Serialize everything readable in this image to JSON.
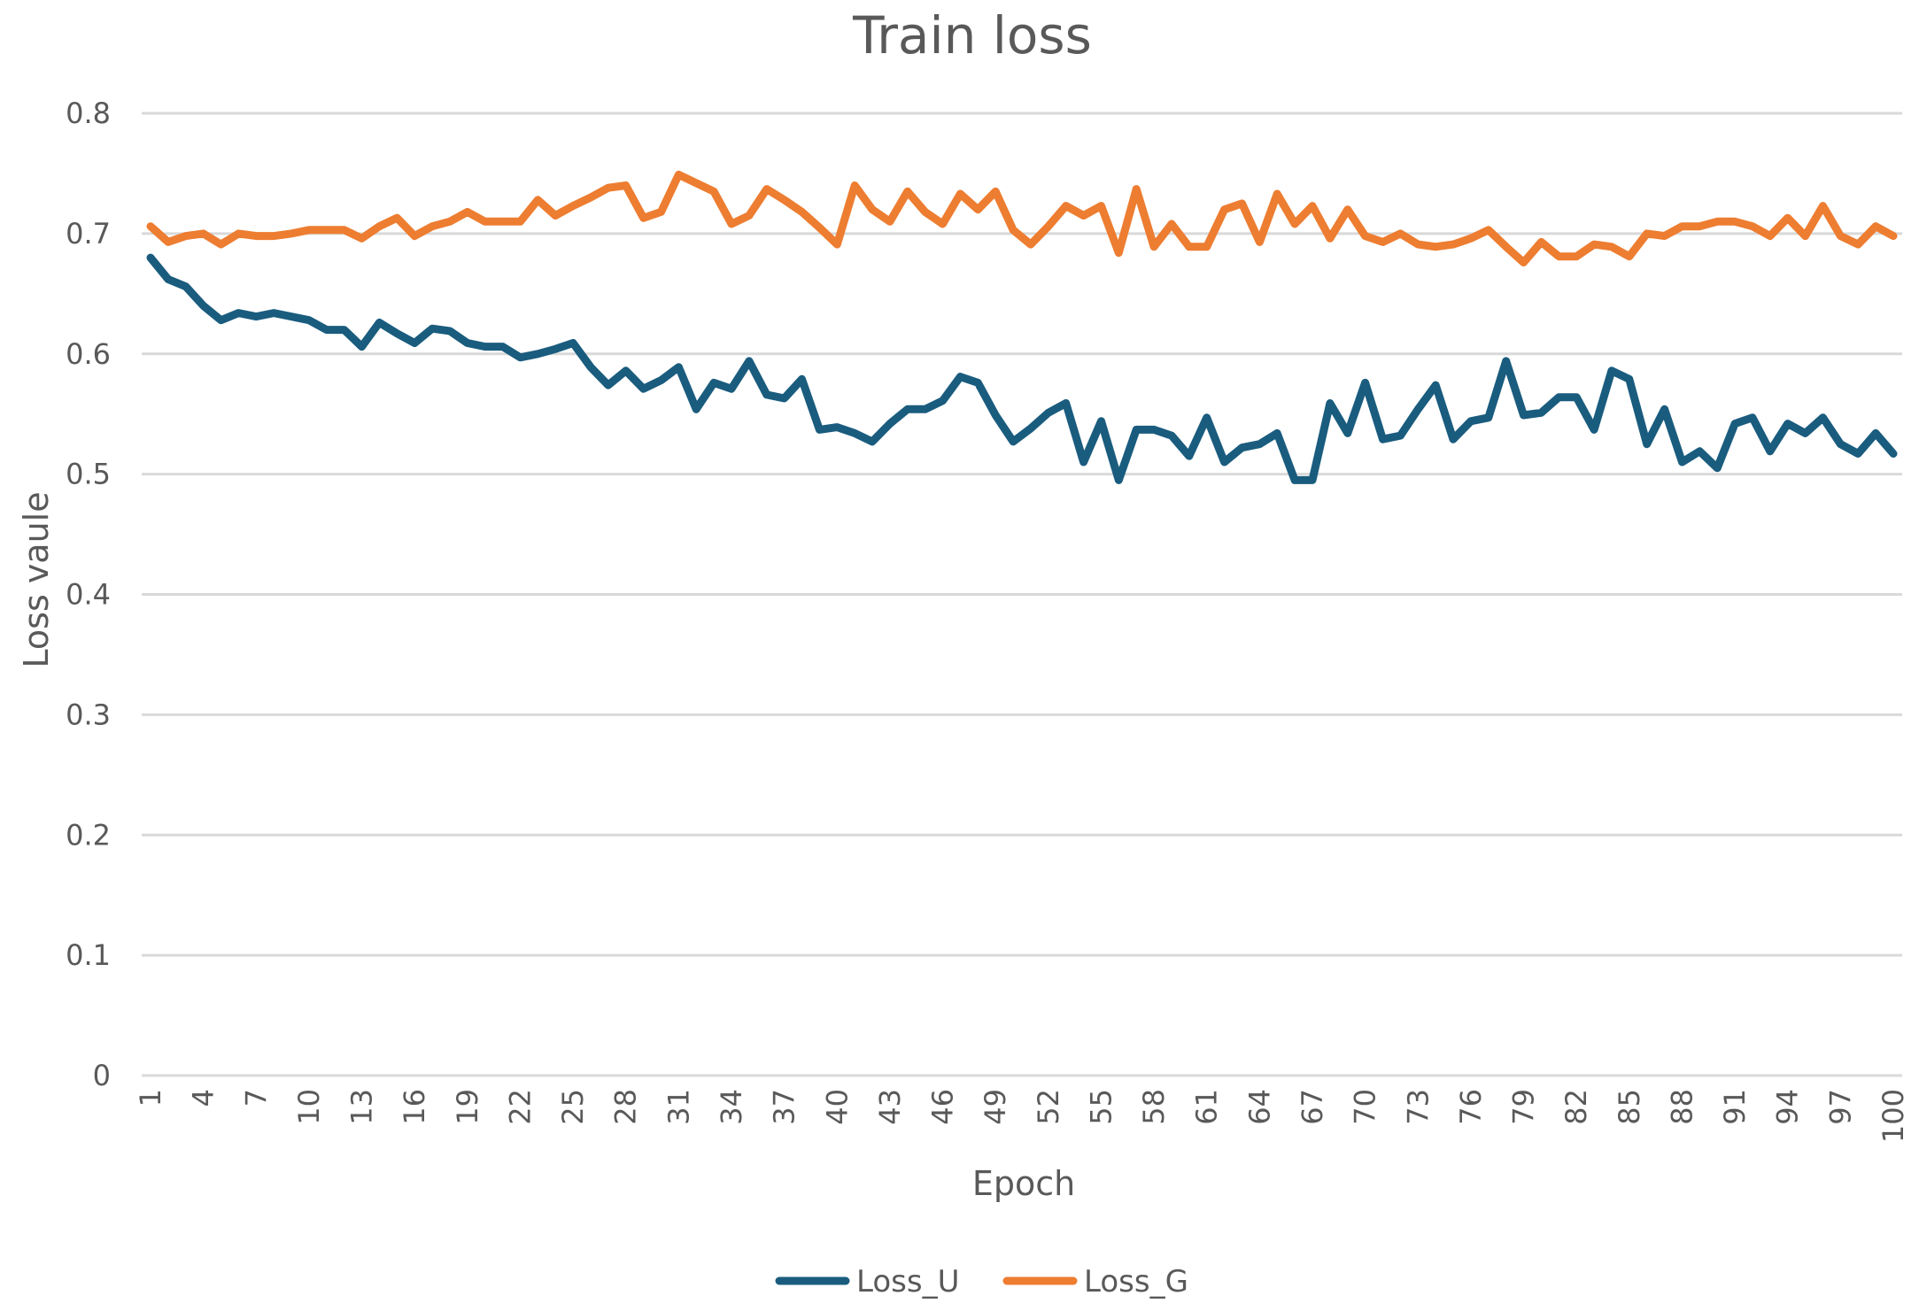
{
  "chart_data": {
    "type": "line",
    "title": "Train loss",
    "xlabel": "Epoch",
    "ylabel": "Loss vaule",
    "ylim": [
      0,
      0.8
    ],
    "yticks": [
      "0",
      "0.1",
      "0.2",
      "0.3",
      "0.4",
      "0.5",
      "0.6",
      "0.7",
      "0.8"
    ],
    "grid": true,
    "legend_position": "bottom",
    "x": [
      1,
      2,
      3,
      4,
      5,
      6,
      7,
      8,
      9,
      10,
      11,
      12,
      13,
      14,
      15,
      16,
      17,
      18,
      19,
      20,
      21,
      22,
      23,
      24,
      25,
      26,
      27,
      28,
      29,
      30,
      31,
      32,
      33,
      34,
      35,
      36,
      37,
      38,
      39,
      40,
      41,
      42,
      43,
      44,
      45,
      46,
      47,
      48,
      49,
      50,
      51,
      52,
      53,
      54,
      55,
      56,
      57,
      58,
      59,
      60,
      61,
      62,
      63,
      64,
      65,
      66,
      67,
      68,
      69,
      70,
      71,
      72,
      73,
      74,
      75,
      76,
      77,
      78,
      79,
      80,
      81,
      82,
      83,
      84,
      85,
      86,
      87,
      88,
      89,
      90,
      91,
      92,
      93,
      94,
      95,
      96,
      97,
      98,
      99,
      100
    ],
    "xtick_labels": [
      "1",
      "4",
      "7",
      "10",
      "13",
      "16",
      "19",
      "22",
      "25",
      "28",
      "31",
      "34",
      "37",
      "40",
      "43",
      "46",
      "49",
      "52",
      "55",
      "58",
      "61",
      "64",
      "67",
      "70",
      "73",
      "76",
      "79",
      "82",
      "85",
      "88",
      "91",
      "94",
      "97",
      "100"
    ],
    "series": [
      {
        "name": "Loss_U",
        "color": "#1a5c7e",
        "values": [
          0.68,
          0.662,
          0.656,
          0.64,
          0.628,
          0.634,
          0.631,
          0.634,
          0.631,
          0.628,
          0.62,
          0.62,
          0.606,
          0.626,
          0.617,
          0.609,
          0.621,
          0.619,
          0.609,
          0.606,
          0.606,
          0.597,
          0.6,
          0.604,
          0.609,
          0.589,
          0.574,
          0.586,
          0.571,
          0.578,
          0.589,
          0.554,
          0.576,
          0.571,
          0.594,
          0.566,
          0.563,
          0.579,
          0.537,
          0.539,
          0.534,
          0.527,
          0.542,
          0.554,
          0.554,
          0.561,
          0.581,
          0.576,
          0.549,
          0.527,
          0.538,
          0.551,
          0.559,
          0.51,
          0.544,
          0.495,
          0.537,
          0.537,
          0.532,
          0.515,
          0.547,
          0.51,
          0.522,
          0.525,
          0.534,
          0.495,
          0.495,
          0.559,
          0.534,
          0.576,
          0.529,
          0.532,
          0.554,
          0.574,
          0.529,
          0.544,
          0.547,
          0.594,
          0.549,
          0.551,
          0.564,
          0.564,
          0.537,
          0.586,
          0.579,
          0.525,
          0.554,
          0.51,
          0.519,
          0.505,
          0.542,
          0.547,
          0.519,
          0.542,
          0.534,
          0.547,
          0.525,
          0.517,
          0.534,
          0.517
        ]
      },
      {
        "name": "Loss_G",
        "color": "#ed7d31",
        "values": [
          0.706,
          0.693,
          0.698,
          0.7,
          0.691,
          0.7,
          0.698,
          0.698,
          0.7,
          0.703,
          0.703,
          0.703,
          0.696,
          0.706,
          0.713,
          0.698,
          0.706,
          0.71,
          0.718,
          0.71,
          0.71,
          0.71,
          0.728,
          0.715,
          0.723,
          0.73,
          0.738,
          0.74,
          0.713,
          0.718,
          0.749,
          0.742,
          0.735,
          0.708,
          0.715,
          0.737,
          0.728,
          0.718,
          0.705,
          0.691,
          0.74,
          0.72,
          0.71,
          0.735,
          0.718,
          0.708,
          0.733,
          0.72,
          0.735,
          0.703,
          0.691,
          0.706,
          0.723,
          0.715,
          0.723,
          0.684,
          0.737,
          0.689,
          0.708,
          0.689,
          0.689,
          0.72,
          0.725,
          0.693,
          0.733,
          0.708,
          0.723,
          0.696,
          0.72,
          0.698,
          0.693,
          0.7,
          0.691,
          0.689,
          0.691,
          0.696,
          0.703,
          0.689,
          0.676,
          0.693,
          0.681,
          0.681,
          0.691,
          0.689,
          0.681,
          0.7,
          0.698,
          0.706,
          0.706,
          0.71,
          0.71,
          0.706,
          0.698,
          0.713,
          0.698,
          0.723,
          0.698,
          0.691,
          0.706,
          0.698
        ]
      }
    ]
  }
}
